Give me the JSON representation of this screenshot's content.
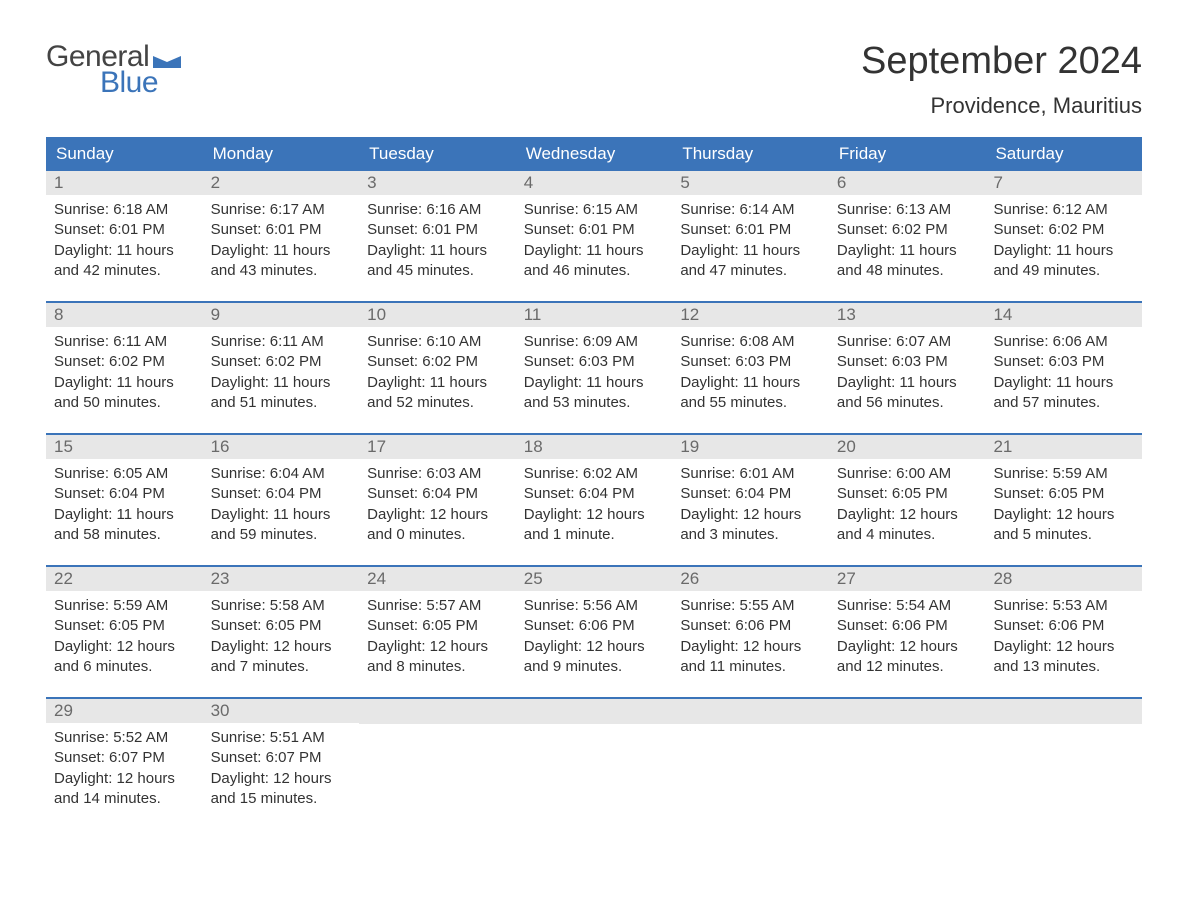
{
  "brand": {
    "word1": "General",
    "word2": "Blue",
    "accent_color": "#3b74b9"
  },
  "title": "September 2024",
  "location": "Providence, Mauritius",
  "header_bg": "#3b74b9",
  "header_text_color": "#ffffff",
  "daynum_bg": "#e7e7e7",
  "daynum_color": "#6a6a6a",
  "body_text_color": "#333333",
  "row_border_color": "#3b74b9",
  "weekdays": [
    "Sunday",
    "Monday",
    "Tuesday",
    "Wednesday",
    "Thursday",
    "Friday",
    "Saturday"
  ],
  "labels": {
    "sunrise": "Sunrise:",
    "sunset": "Sunset:",
    "daylight": "Daylight:"
  },
  "weeks": [
    [
      {
        "n": "1",
        "sr": "6:18 AM",
        "ss": "6:01 PM",
        "dl": "11 hours and 42 minutes."
      },
      {
        "n": "2",
        "sr": "6:17 AM",
        "ss": "6:01 PM",
        "dl": "11 hours and 43 minutes."
      },
      {
        "n": "3",
        "sr": "6:16 AM",
        "ss": "6:01 PM",
        "dl": "11 hours and 45 minutes."
      },
      {
        "n": "4",
        "sr": "6:15 AM",
        "ss": "6:01 PM",
        "dl": "11 hours and 46 minutes."
      },
      {
        "n": "5",
        "sr": "6:14 AM",
        "ss": "6:01 PM",
        "dl": "11 hours and 47 minutes."
      },
      {
        "n": "6",
        "sr": "6:13 AM",
        "ss": "6:02 PM",
        "dl": "11 hours and 48 minutes."
      },
      {
        "n": "7",
        "sr": "6:12 AM",
        "ss": "6:02 PM",
        "dl": "11 hours and 49 minutes."
      }
    ],
    [
      {
        "n": "8",
        "sr": "6:11 AM",
        "ss": "6:02 PM",
        "dl": "11 hours and 50 minutes."
      },
      {
        "n": "9",
        "sr": "6:11 AM",
        "ss": "6:02 PM",
        "dl": "11 hours and 51 minutes."
      },
      {
        "n": "10",
        "sr": "6:10 AM",
        "ss": "6:02 PM",
        "dl": "11 hours and 52 minutes."
      },
      {
        "n": "11",
        "sr": "6:09 AM",
        "ss": "6:03 PM",
        "dl": "11 hours and 53 minutes."
      },
      {
        "n": "12",
        "sr": "6:08 AM",
        "ss": "6:03 PM",
        "dl": "11 hours and 55 minutes."
      },
      {
        "n": "13",
        "sr": "6:07 AM",
        "ss": "6:03 PM",
        "dl": "11 hours and 56 minutes."
      },
      {
        "n": "14",
        "sr": "6:06 AM",
        "ss": "6:03 PM",
        "dl": "11 hours and 57 minutes."
      }
    ],
    [
      {
        "n": "15",
        "sr": "6:05 AM",
        "ss": "6:04 PM",
        "dl": "11 hours and 58 minutes."
      },
      {
        "n": "16",
        "sr": "6:04 AM",
        "ss": "6:04 PM",
        "dl": "11 hours and 59 minutes."
      },
      {
        "n": "17",
        "sr": "6:03 AM",
        "ss": "6:04 PM",
        "dl": "12 hours and 0 minutes."
      },
      {
        "n": "18",
        "sr": "6:02 AM",
        "ss": "6:04 PM",
        "dl": "12 hours and 1 minute."
      },
      {
        "n": "19",
        "sr": "6:01 AM",
        "ss": "6:04 PM",
        "dl": "12 hours and 3 minutes."
      },
      {
        "n": "20",
        "sr": "6:00 AM",
        "ss": "6:05 PM",
        "dl": "12 hours and 4 minutes."
      },
      {
        "n": "21",
        "sr": "5:59 AM",
        "ss": "6:05 PM",
        "dl": "12 hours and 5 minutes."
      }
    ],
    [
      {
        "n": "22",
        "sr": "5:59 AM",
        "ss": "6:05 PM",
        "dl": "12 hours and 6 minutes."
      },
      {
        "n": "23",
        "sr": "5:58 AM",
        "ss": "6:05 PM",
        "dl": "12 hours and 7 minutes."
      },
      {
        "n": "24",
        "sr": "5:57 AM",
        "ss": "6:05 PM",
        "dl": "12 hours and 8 minutes."
      },
      {
        "n": "25",
        "sr": "5:56 AM",
        "ss": "6:06 PM",
        "dl": "12 hours and 9 minutes."
      },
      {
        "n": "26",
        "sr": "5:55 AM",
        "ss": "6:06 PM",
        "dl": "12 hours and 11 minutes."
      },
      {
        "n": "27",
        "sr": "5:54 AM",
        "ss": "6:06 PM",
        "dl": "12 hours and 12 minutes."
      },
      {
        "n": "28",
        "sr": "5:53 AM",
        "ss": "6:06 PM",
        "dl": "12 hours and 13 minutes."
      }
    ],
    [
      {
        "n": "29",
        "sr": "5:52 AM",
        "ss": "6:07 PM",
        "dl": "12 hours and 14 minutes."
      },
      {
        "n": "30",
        "sr": "5:51 AM",
        "ss": "6:07 PM",
        "dl": "12 hours and 15 minutes."
      },
      null,
      null,
      null,
      null,
      null
    ]
  ]
}
